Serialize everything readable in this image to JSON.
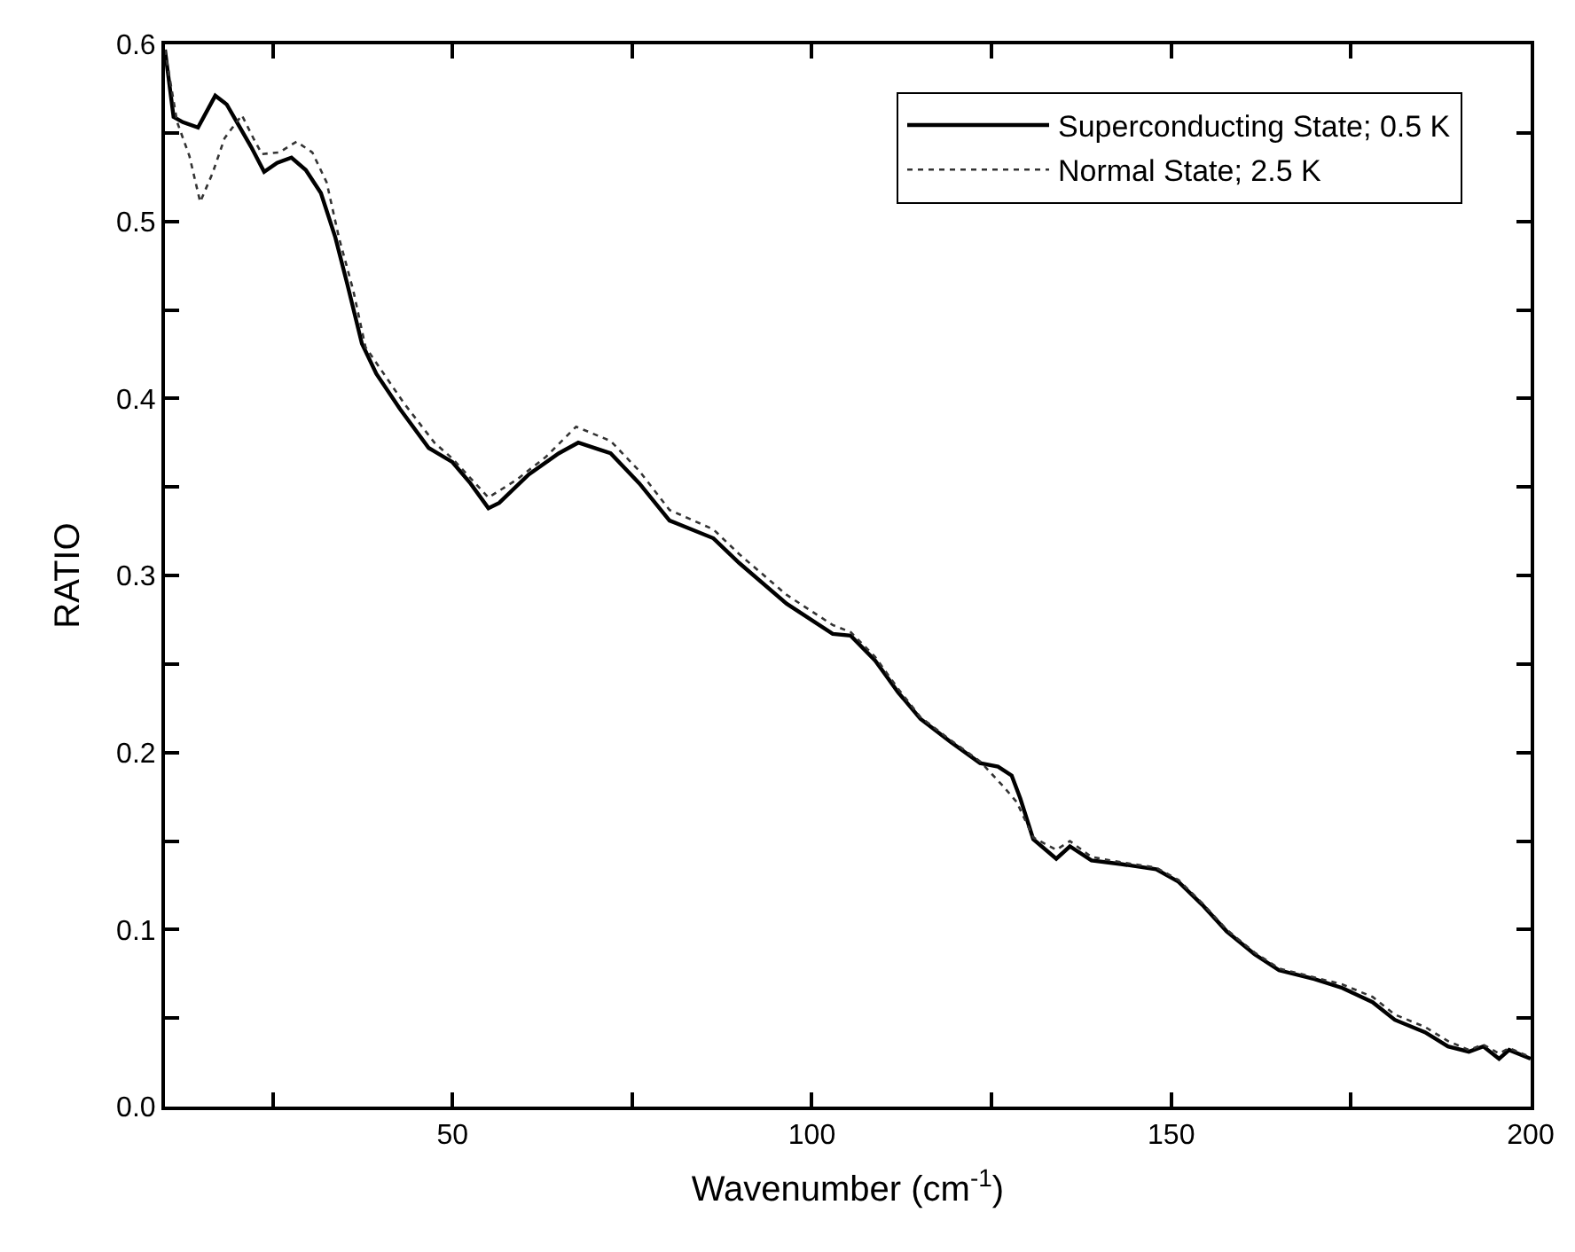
{
  "chart_data": {
    "type": "line",
    "xlabel": "Wavenumber (cm$^{-1}$)",
    "ylabel": "RATIO",
    "xlim": [
      10,
      200
    ],
    "ylim": [
      0.0,
      0.6
    ],
    "xticks": [
      {
        "value": 25,
        "label": null
      },
      50,
      {
        "value": 75,
        "label": null
      },
      100,
      {
        "value": 125,
        "label": null
      },
      150,
      {
        "value": 175,
        "label": null
      },
      200
    ],
    "yticks": [
      "0.0",
      {
        "value": 0.05,
        "label": null
      },
      0.1,
      {
        "value": 0.15,
        "label": null
      },
      0.2,
      {
        "value": 0.25,
        "label": null
      },
      0.3,
      {
        "value": 0.35,
        "label": null
      },
      0.4,
      {
        "value": 0.45,
        "label": null
      },
      0.5,
      {
        "value": 0.55,
        "label": null
      },
      0.6
    ],
    "legend": "top right",
    "series": [
      {
        "name": "Superconducting State; 0.5 K",
        "color": "#000000",
        "line_style": "solid",
        "x": [
          10,
          11.2,
          12.5,
          14.6,
          17,
          18.6,
          20.3,
          22,
          23.8,
          25.6,
          27.6,
          29.6,
          31.7,
          33.7,
          35.4,
          37.4,
          39.4,
          42.7,
          46.7,
          50,
          52.5,
          55,
          56.5,
          60.6,
          64.8,
          67.5,
          72,
          76,
          80.2,
          86.3,
          89.9,
          96.5,
          102.9,
          105.4,
          108.8,
          112,
          115.1,
          119.3,
          123.4,
          125.9,
          127.8,
          129,
          130.8,
          134,
          135.9,
          138.9,
          143,
          147.9,
          151,
          154.3,
          157.7,
          161.6,
          165,
          169.9,
          173.8,
          178,
          181.1,
          185.3,
          188.5,
          191.4,
          193.4,
          195.6,
          197,
          200
        ],
        "values": [
          0.597,
          0.559,
          0.556,
          0.553,
          0.571,
          0.566,
          0.554,
          0.542,
          0.528,
          0.533,
          0.536,
          0.529,
          0.516,
          0.491,
          0.464,
          0.431,
          0.414,
          0.394,
          0.372,
          0.364,
          0.352,
          0.338,
          0.341,
          0.357,
          0.369,
          0.375,
          0.369,
          0.352,
          0.331,
          0.321,
          0.307,
          0.284,
          0.267,
          0.266,
          0.252,
          0.234,
          0.219,
          0.206,
          0.194,
          0.192,
          0.187,
          0.174,
          0.151,
          0.14,
          0.147,
          0.139,
          0.137,
          0.134,
          0.127,
          0.114,
          0.099,
          0.086,
          0.077,
          0.072,
          0.067,
          0.059,
          0.049,
          0.042,
          0.034,
          0.031,
          0.034,
          0.027,
          0.032,
          0.027
        ]
      },
      {
        "name": "Normal State; 2.5 K",
        "color": "#333333",
        "line_style": "dotted",
        "x": [
          10,
          11.7,
          13.4,
          14.9,
          16.6,
          18.3,
          20.7,
          22.3,
          23.5,
          25.9,
          28.3,
          30.5,
          32.5,
          34.2,
          36.2,
          37.9,
          43.3,
          47.5,
          50,
          55,
          58.9,
          63,
          67.2,
          72,
          76,
          80.2,
          86.3,
          89.9,
          96.5,
          102.9,
          105.4,
          108.8,
          112,
          115.1,
          119.3,
          123.4,
          126.6,
          128.5,
          130.8,
          134,
          135.9,
          138.9,
          143,
          147.9,
          151,
          154.3,
          157.7,
          161.6,
          165,
          169.9,
          173.8,
          178,
          181.1,
          185.3,
          188.5,
          191.4,
          193.4,
          195.6,
          197,
          200
        ],
        "values": [
          0.597,
          0.556,
          0.537,
          0.511,
          0.527,
          0.547,
          0.56,
          0.547,
          0.538,
          0.539,
          0.545,
          0.539,
          0.522,
          0.491,
          0.461,
          0.429,
          0.397,
          0.375,
          0.366,
          0.344,
          0.354,
          0.367,
          0.384,
          0.376,
          0.359,
          0.337,
          0.326,
          0.312,
          0.289,
          0.272,
          0.268,
          0.254,
          0.236,
          0.22,
          0.207,
          0.195,
          0.181,
          0.172,
          0.152,
          0.145,
          0.15,
          0.141,
          0.138,
          0.135,
          0.128,
          0.115,
          0.1,
          0.087,
          0.078,
          0.073,
          0.069,
          0.062,
          0.052,
          0.045,
          0.037,
          0.032,
          0.035,
          0.03,
          0.033,
          0.028
        ]
      }
    ]
  }
}
